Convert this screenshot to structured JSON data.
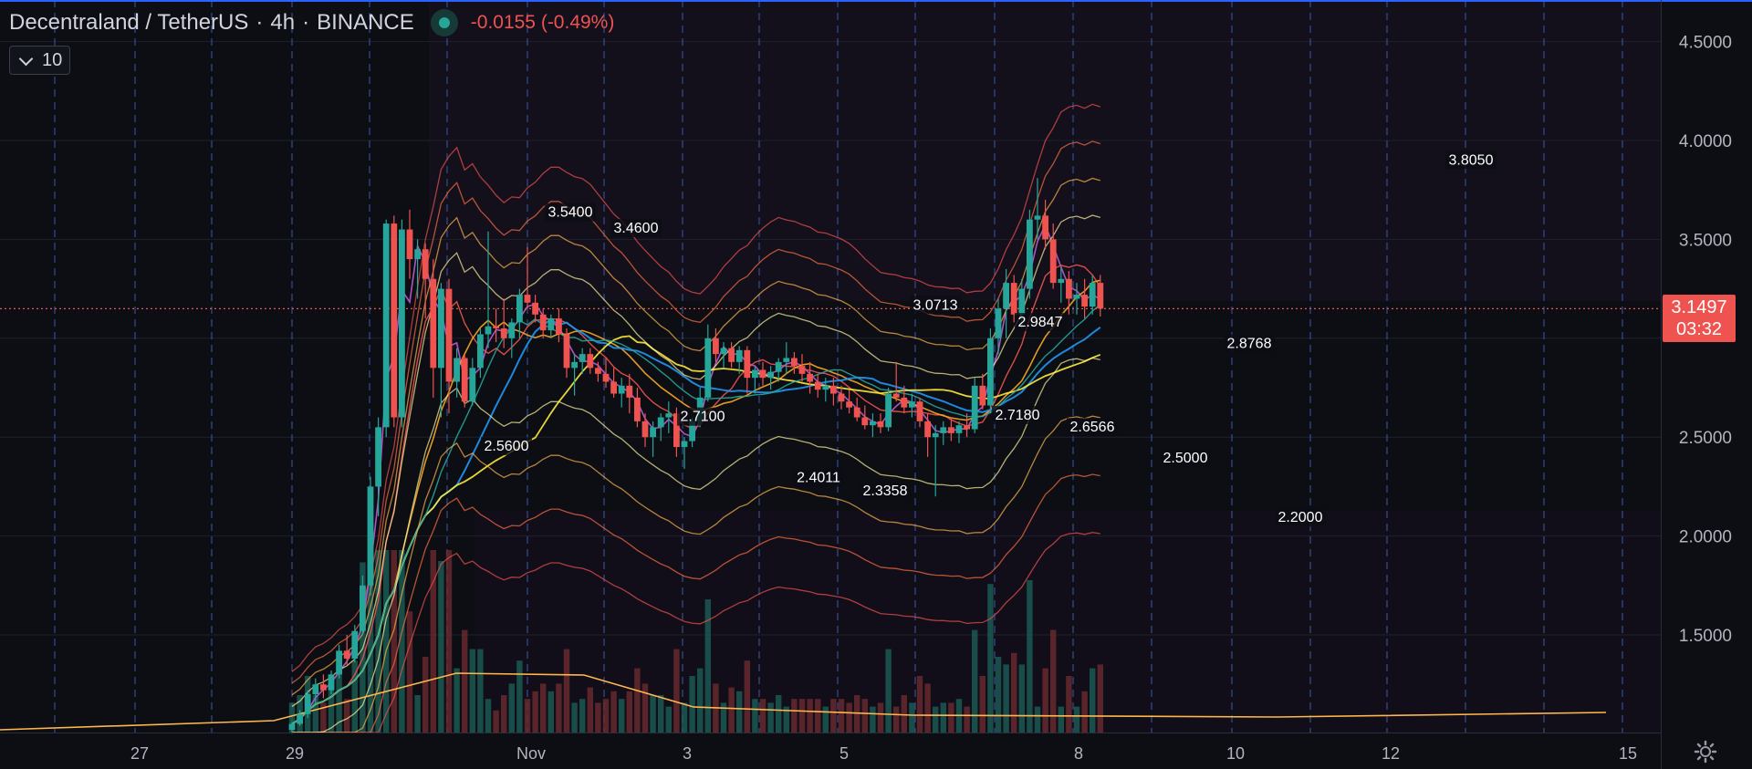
{
  "header": {
    "pair": "Decentraland / TetherUS",
    "interval": "4h",
    "exchange": "BINANCE",
    "change": "-0.0155 (-0.49%)"
  },
  "indicator_badge": {
    "value": "10"
  },
  "last_price": {
    "value": "3.1497",
    "countdown": "03:32"
  },
  "colors": {
    "up": "#26a69a",
    "down": "#ef5350",
    "grid_dash": "#3f63b8",
    "price_line": "#ef5350"
  },
  "chart_data": {
    "type": "candlestick",
    "y_ticks": [
      "4.5000",
      "4.0000",
      "3.5000",
      "2.5000",
      "2.0000",
      "1.5000"
    ],
    "ylim": [
      1.0,
      4.7
    ],
    "x_ticks": [
      "27",
      "29",
      "Nov",
      "3",
      "5",
      "8",
      "10",
      "12",
      "15"
    ],
    "annotations": [
      {
        "label": "3.5400",
        "value": 3.54
      },
      {
        "label": "3.4600",
        "value": 3.46
      },
      {
        "label": "2.5600",
        "value": 2.56
      },
      {
        "label": "2.7100",
        "value": 2.71
      },
      {
        "label": "2.4011",
        "value": 2.4011
      },
      {
        "label": "2.3358",
        "value": 2.3358
      },
      {
        "label": "3.0713",
        "value": 3.0713
      },
      {
        "label": "2.9847",
        "value": 2.9847
      },
      {
        "label": "2.7180",
        "value": 2.718
      },
      {
        "label": "2.6566",
        "value": 2.6566
      },
      {
        "label": "2.8768",
        "value": 2.8768
      },
      {
        "label": "2.5000",
        "value": 2.5
      },
      {
        "label": "2.2000",
        "value": 2.2
      },
      {
        "label": "3.8050",
        "value": 3.805
      }
    ],
    "candles": [
      [
        1.02,
        1.06,
        1.0,
        1.05
      ],
      [
        1.05,
        1.12,
        1.04,
        1.1
      ],
      [
        1.1,
        1.22,
        1.08,
        1.2
      ],
      [
        1.2,
        1.28,
        1.15,
        1.25
      ],
      [
        1.25,
        1.3,
        1.18,
        1.22
      ],
      [
        1.22,
        1.32,
        1.2,
        1.3
      ],
      [
        1.3,
        1.45,
        1.28,
        1.42
      ],
      [
        1.42,
        1.5,
        1.35,
        1.38
      ],
      [
        1.38,
        1.55,
        1.36,
        1.52
      ],
      [
        1.52,
        1.8,
        1.5,
        1.75
      ],
      [
        1.75,
        2.3,
        1.7,
        2.25
      ],
      [
        2.25,
        2.6,
        2.1,
        2.55
      ],
      [
        2.55,
        3.6,
        2.5,
        3.58
      ],
      [
        3.58,
        3.62,
        2.55,
        2.6
      ],
      [
        2.6,
        3.6,
        2.55,
        3.55
      ],
      [
        3.55,
        3.65,
        3.3,
        3.4
      ],
      [
        3.4,
        3.5,
        3.2,
        3.45
      ],
      [
        3.45,
        3.48,
        3.1,
        3.3
      ],
      [
        3.3,
        3.4,
        2.7,
        2.85
      ],
      [
        2.85,
        3.28,
        2.6,
        3.25
      ],
      [
        3.25,
        3.3,
        2.62,
        2.78
      ],
      [
        2.78,
        2.95,
        2.7,
        2.9
      ],
      [
        2.9,
        2.92,
        2.65,
        2.68
      ],
      [
        2.68,
        2.9,
        2.66,
        2.85
      ],
      [
        2.85,
        3.05,
        2.8,
        3.02
      ],
      [
        3.02,
        3.54,
        2.95,
        3.06
      ],
      [
        3.06,
        3.15,
        2.98,
        3.05
      ],
      [
        3.05,
        3.2,
        2.95,
        3.0
      ],
      [
        3.0,
        3.1,
        2.9,
        3.08
      ],
      [
        3.08,
        3.25,
        3.0,
        3.22
      ],
      [
        3.22,
        3.46,
        3.15,
        3.18
      ],
      [
        3.18,
        3.22,
        3.08,
        3.12
      ],
      [
        3.12,
        3.15,
        3.0,
        3.04
      ],
      [
        3.04,
        3.12,
        3.0,
        3.1
      ],
      [
        3.1,
        3.15,
        2.98,
        3.02
      ],
      [
        3.02,
        3.05,
        2.8,
        2.85
      ],
      [
        2.85,
        2.92,
        2.71,
        2.88
      ],
      [
        2.88,
        2.95,
        2.82,
        2.92
      ],
      [
        2.92,
        2.95,
        2.82,
        2.85
      ],
      [
        2.85,
        2.88,
        2.78,
        2.82
      ],
      [
        2.82,
        2.9,
        2.75,
        2.78
      ],
      [
        2.78,
        2.85,
        2.7,
        2.72
      ],
      [
        2.72,
        2.8,
        2.65,
        2.76
      ],
      [
        2.76,
        2.82,
        2.62,
        2.7
      ],
      [
        2.7,
        2.75,
        2.55,
        2.58
      ],
      [
        2.58,
        2.62,
        2.45,
        2.5
      ],
      [
        2.5,
        2.58,
        2.4,
        2.55
      ],
      [
        2.55,
        2.62,
        2.48,
        2.6
      ],
      [
        2.6,
        2.68,
        2.52,
        2.62
      ],
      [
        2.62,
        2.65,
        2.4,
        2.45
      ],
      [
        2.45,
        2.5,
        2.34,
        2.48
      ],
      [
        2.48,
        2.6,
        2.45,
        2.58
      ],
      [
        2.58,
        2.75,
        2.55,
        2.7
      ],
      [
        2.7,
        3.07,
        2.68,
        3.0
      ],
      [
        3.0,
        3.05,
        2.88,
        2.92
      ],
      [
        2.92,
        2.98,
        2.85,
        2.95
      ],
      [
        2.95,
        2.98,
        2.85,
        2.88
      ],
      [
        2.88,
        2.96,
        2.82,
        2.94
      ],
      [
        2.94,
        2.96,
        2.72,
        2.8
      ],
      [
        2.8,
        2.86,
        2.72,
        2.84
      ],
      [
        2.84,
        2.88,
        2.76,
        2.8
      ],
      [
        2.8,
        2.86,
        2.74,
        2.83
      ],
      [
        2.83,
        2.9,
        2.78,
        2.88
      ],
      [
        2.88,
        2.98,
        2.82,
        2.9
      ],
      [
        2.9,
        2.93,
        2.82,
        2.86
      ],
      [
        2.86,
        2.92,
        2.78,
        2.82
      ],
      [
        2.82,
        2.88,
        2.72,
        2.78
      ],
      [
        2.78,
        2.82,
        2.7,
        2.74
      ],
      [
        2.74,
        2.8,
        2.68,
        2.76
      ],
      [
        2.76,
        2.8,
        2.66,
        2.72
      ],
      [
        2.72,
        2.76,
        2.64,
        2.68
      ],
      [
        2.68,
        2.74,
        2.62,
        2.65
      ],
      [
        2.65,
        2.7,
        2.58,
        2.6
      ],
      [
        2.6,
        2.66,
        2.54,
        2.56
      ],
      [
        2.56,
        2.62,
        2.5,
        2.58
      ],
      [
        2.58,
        2.62,
        2.52,
        2.55
      ],
      [
        2.55,
        2.75,
        2.53,
        2.72
      ],
      [
        2.72,
        2.88,
        2.68,
        2.7
      ],
      [
        2.7,
        2.76,
        2.62,
        2.65
      ],
      [
        2.65,
        2.72,
        2.6,
        2.68
      ],
      [
        2.68,
        2.7,
        2.55,
        2.58
      ],
      [
        2.58,
        2.62,
        2.4,
        2.5
      ],
      [
        2.5,
        2.56,
        2.2,
        2.52
      ],
      [
        2.52,
        2.58,
        2.46,
        2.55
      ],
      [
        2.55,
        2.6,
        2.48,
        2.52
      ],
      [
        2.52,
        2.58,
        2.47,
        2.56
      ],
      [
        2.56,
        2.62,
        2.5,
        2.54
      ],
      [
        2.54,
        2.8,
        2.52,
        2.76
      ],
      [
        2.76,
        2.82,
        2.64,
        2.66
      ],
      [
        2.66,
        3.05,
        2.62,
        3.0
      ],
      [
        3.0,
        3.2,
        2.92,
        3.15
      ],
      [
        3.15,
        3.35,
        3.0,
        3.28
      ],
      [
        3.28,
        3.32,
        3.08,
        3.12
      ],
      [
        3.12,
        3.3,
        3.05,
        3.25
      ],
      [
        3.25,
        3.65,
        3.2,
        3.6
      ],
      [
        3.6,
        3.81,
        3.5,
        3.62
      ],
      [
        3.62,
        3.7,
        3.45,
        3.5
      ],
      [
        3.5,
        3.58,
        3.25,
        3.28
      ],
      [
        3.28,
        3.36,
        3.18,
        3.3
      ],
      [
        3.3,
        3.34,
        3.12,
        3.2
      ],
      [
        3.2,
        3.28,
        3.12,
        3.22
      ],
      [
        3.22,
        3.3,
        3.1,
        3.16
      ],
      [
        3.16,
        3.32,
        3.12,
        3.28
      ],
      [
        3.28,
        3.32,
        3.11,
        3.15
      ]
    ]
  }
}
